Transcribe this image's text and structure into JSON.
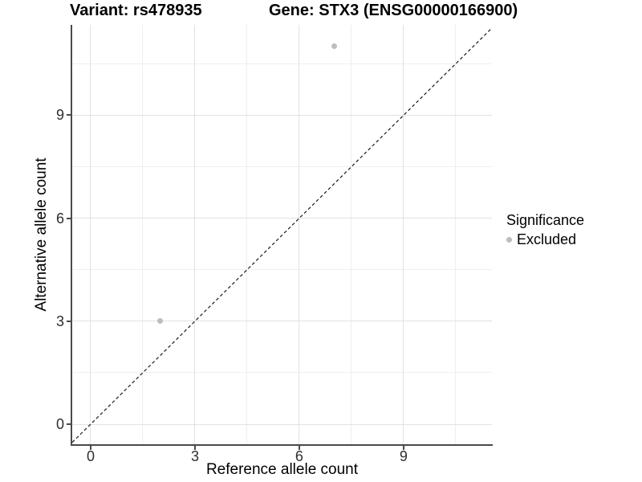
{
  "titles": {
    "variant": "Variant: rs478935",
    "gene": "Gene: STX3 (ENSG00000166900)"
  },
  "legend": {
    "title": "Significance",
    "items": [
      {
        "label": "Excluded",
        "color": "#bdbdbd"
      }
    ]
  },
  "chart_data": {
    "type": "scatter",
    "title": "Variant: rs478935 — Gene: STX3 (ENSG00000166900)",
    "xlabel": "Reference allele count",
    "ylabel": "Alternative allele count",
    "xlim": [
      -0.53,
      11.54
    ],
    "ylim": [
      -0.585,
      11.63
    ],
    "x_ticks": [
      0,
      3,
      6,
      9
    ],
    "y_ticks": [
      0,
      3,
      6,
      9
    ],
    "x_minor_ticks": [
      1.5,
      4.5,
      7.5,
      10.5
    ],
    "y_minor_ticks": [
      1.5,
      4.5,
      7.5,
      10.5
    ],
    "grid": "major+minor",
    "legend_position": "right",
    "series": [
      {
        "name": "Excluded",
        "color": "#bdbdbd",
        "points": [
          {
            "x": 2,
            "y": 3
          },
          {
            "x": 7,
            "y": 11
          }
        ]
      }
    ],
    "reference_line": {
      "type": "identity y=x",
      "style": "dashed",
      "color": "#1a1a1a"
    }
  },
  "style": {
    "grid_major_color": "#e2e2e2",
    "grid_minor_color": "#efefef",
    "axis_color": "#4a4a4a",
    "tick_label_color": "#2e2e2e",
    "point_color": "#bdbdbd"
  }
}
